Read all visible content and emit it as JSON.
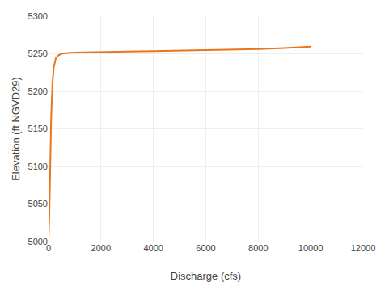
{
  "chart_data": {
    "type": "line",
    "xlabel": "Discharge (cfs)",
    "ylabel": "Elevation (ft NGVD29)",
    "x": [
      0,
      10,
      30,
      60,
      100,
      150,
      200,
      280,
      380,
      500,
      700,
      1000,
      1500,
      2000,
      3000,
      4000,
      5000,
      6000,
      7000,
      8000,
      9000,
      10000
    ],
    "values": [
      5003,
      5010,
      5035,
      5090,
      5165,
      5210,
      5232,
      5244,
      5248,
      5250,
      5251,
      5251.5,
      5252,
      5252.5,
      5253,
      5253.5,
      5254,
      5254.5,
      5255.5,
      5256.2,
      5257.5,
      5259.5
    ],
    "color": "#E8761E",
    "xlim": [
      0,
      12000
    ],
    "ylim": [
      5000,
      5300
    ],
    "xticks": [
      0,
      2000,
      4000,
      6000,
      8000,
      10000,
      12000
    ],
    "yticks": [
      5000,
      5050,
      5100,
      5150,
      5200,
      5250,
      5300
    ],
    "grid": true
  }
}
